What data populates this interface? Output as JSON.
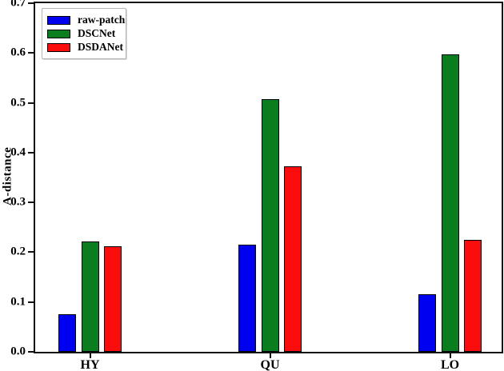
{
  "chart_data": {
    "type": "bar",
    "title": "",
    "xlabel": "",
    "ylabel": "A-distance",
    "ylim": [
      0.0,
      0.7
    ],
    "yticks": [
      "0.0",
      "0.1",
      "0.2",
      "0.3",
      "0.4",
      "0.5",
      "0.6",
      "0.7"
    ],
    "categories": [
      "HY",
      "QU",
      "LO"
    ],
    "series": [
      {
        "name": "raw-patch",
        "color": "#0000f0",
        "values": [
          0.075,
          0.215,
          0.115
        ]
      },
      {
        "name": "DSCNet",
        "color": "#0a7e1e",
        "values": [
          0.222,
          0.508,
          0.597
        ]
      },
      {
        "name": "DSDANet",
        "color": "#fb0d0d",
        "values": [
          0.212,
          0.373,
          0.225
        ]
      }
    ],
    "legend_position": "upper-left",
    "grid": false,
    "bar_edge_color": "#000000",
    "axis_color": "#111111"
  }
}
